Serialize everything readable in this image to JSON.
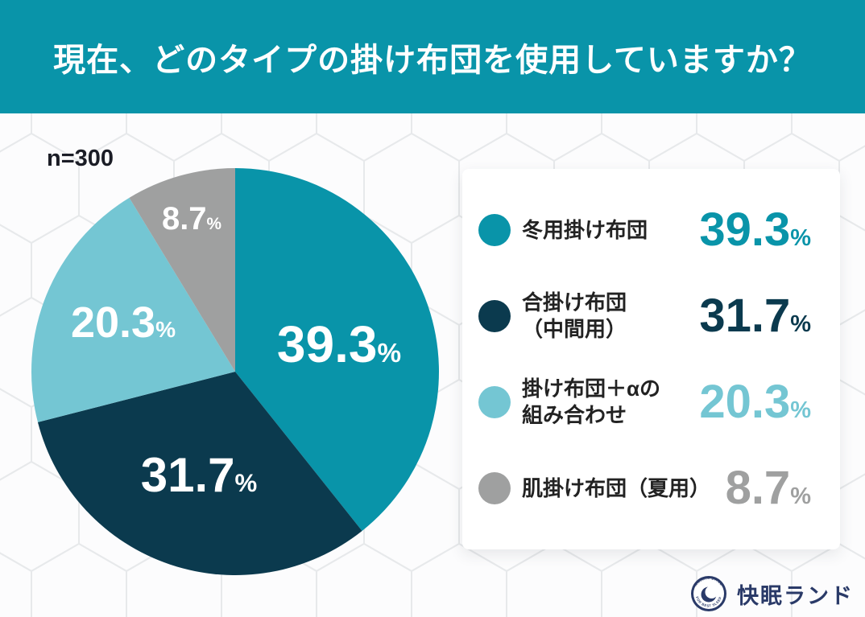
{
  "header": {
    "title": "現在、どのタイプの掛け布団を使用していますか？"
  },
  "sample_label": "n=300",
  "chart_data": {
    "type": "pie",
    "title": "現在、どのタイプの掛け布団を使用していますか？",
    "sample_size": "n=300",
    "start_angle_deg": 0,
    "direction": "clockwise",
    "categories": [
      "冬用掛け布団",
      "合掛け布団（中間用）",
      "掛け布団＋αの組み合わせ",
      "肌掛け布団（夏用）"
    ],
    "values": [
      39.3,
      31.7,
      20.3,
      8.7
    ],
    "colors": [
      "#0994a9",
      "#0b3a4e",
      "#74c6d3",
      "#9fa0a0"
    ],
    "value_unit": "%",
    "legend_position": "right"
  },
  "legend": {
    "items": [
      {
        "label_line1": "冬用掛け布団",
        "label_line2": ""
      },
      {
        "label_line1": "合掛け布団",
        "label_line2": "（中間用）"
      },
      {
        "label_line1": "掛け布団＋αの",
        "label_line2": "組み合わせ"
      },
      {
        "label_line1": "肌掛け布団（夏用）",
        "label_line2": ""
      }
    ]
  },
  "footer": {
    "brand": "快眠ランド",
    "badge_text_top": "KAIMIN LAND",
    "badge_text_bottom": "FOR BEST SLEEP"
  }
}
